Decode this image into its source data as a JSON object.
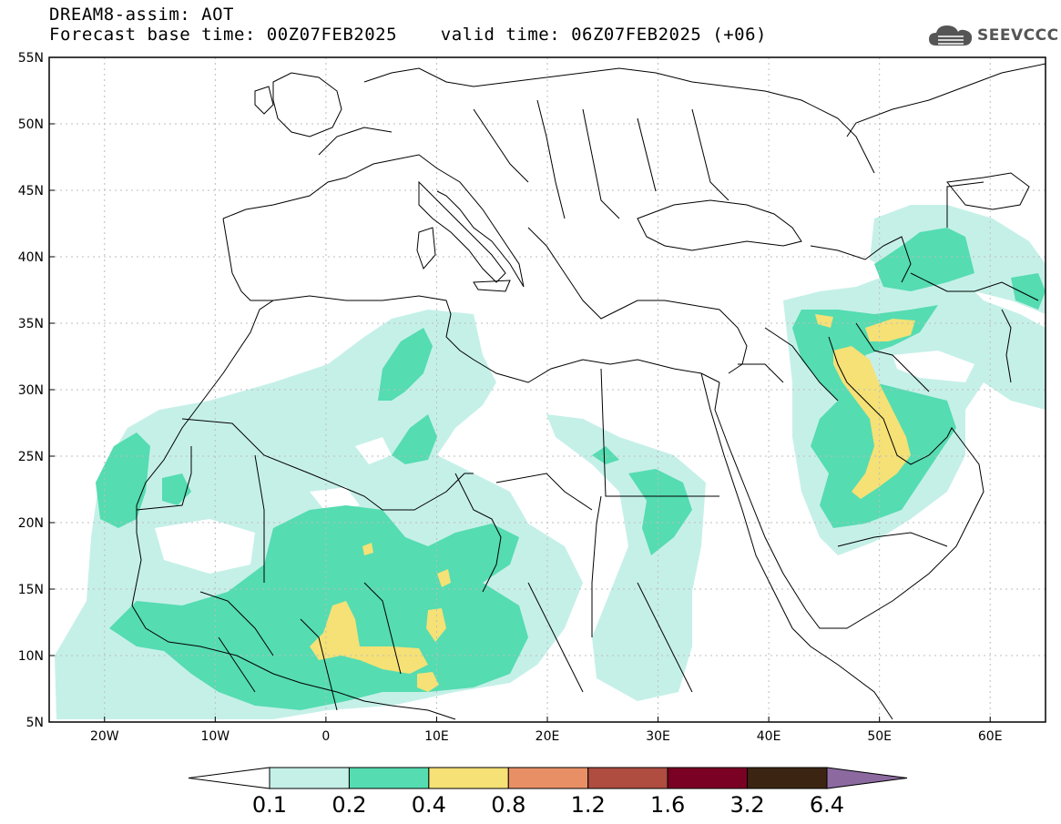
{
  "header": {
    "title_line1": "DREAM8-assim: AOT",
    "title_line2": "Forecast base time: 00Z07FEB2025    valid time: 06Z07FEB2025 (+06)"
  },
  "logo": {
    "text": "SEEVCCC",
    "icon": "cloud-icon"
  },
  "map": {
    "lon_range": [
      -25,
      65
    ],
    "lat_range": [
      5,
      55
    ],
    "lat_ticks": [
      "5N",
      "10N",
      "15N",
      "20N",
      "25N",
      "30N",
      "35N",
      "40N",
      "45N",
      "50N",
      "55N"
    ],
    "lon_ticks": [
      "20W",
      "10W",
      "0",
      "10E",
      "20E",
      "30E",
      "40E",
      "50E",
      "60E"
    ],
    "grid": "dashed"
  },
  "colorbar": {
    "colors": [
      "#ffffff",
      "#c5f0e8",
      "#55dcb1",
      "#f5e176",
      "#e98f66",
      "#ae4d40",
      "#7a0024",
      "#3b2512",
      "#8c6aa0"
    ],
    "labels": [
      "0.1",
      "0.2",
      "0.4",
      "0.8",
      "1.2",
      "1.6",
      "3.2",
      "6.4"
    ]
  }
}
